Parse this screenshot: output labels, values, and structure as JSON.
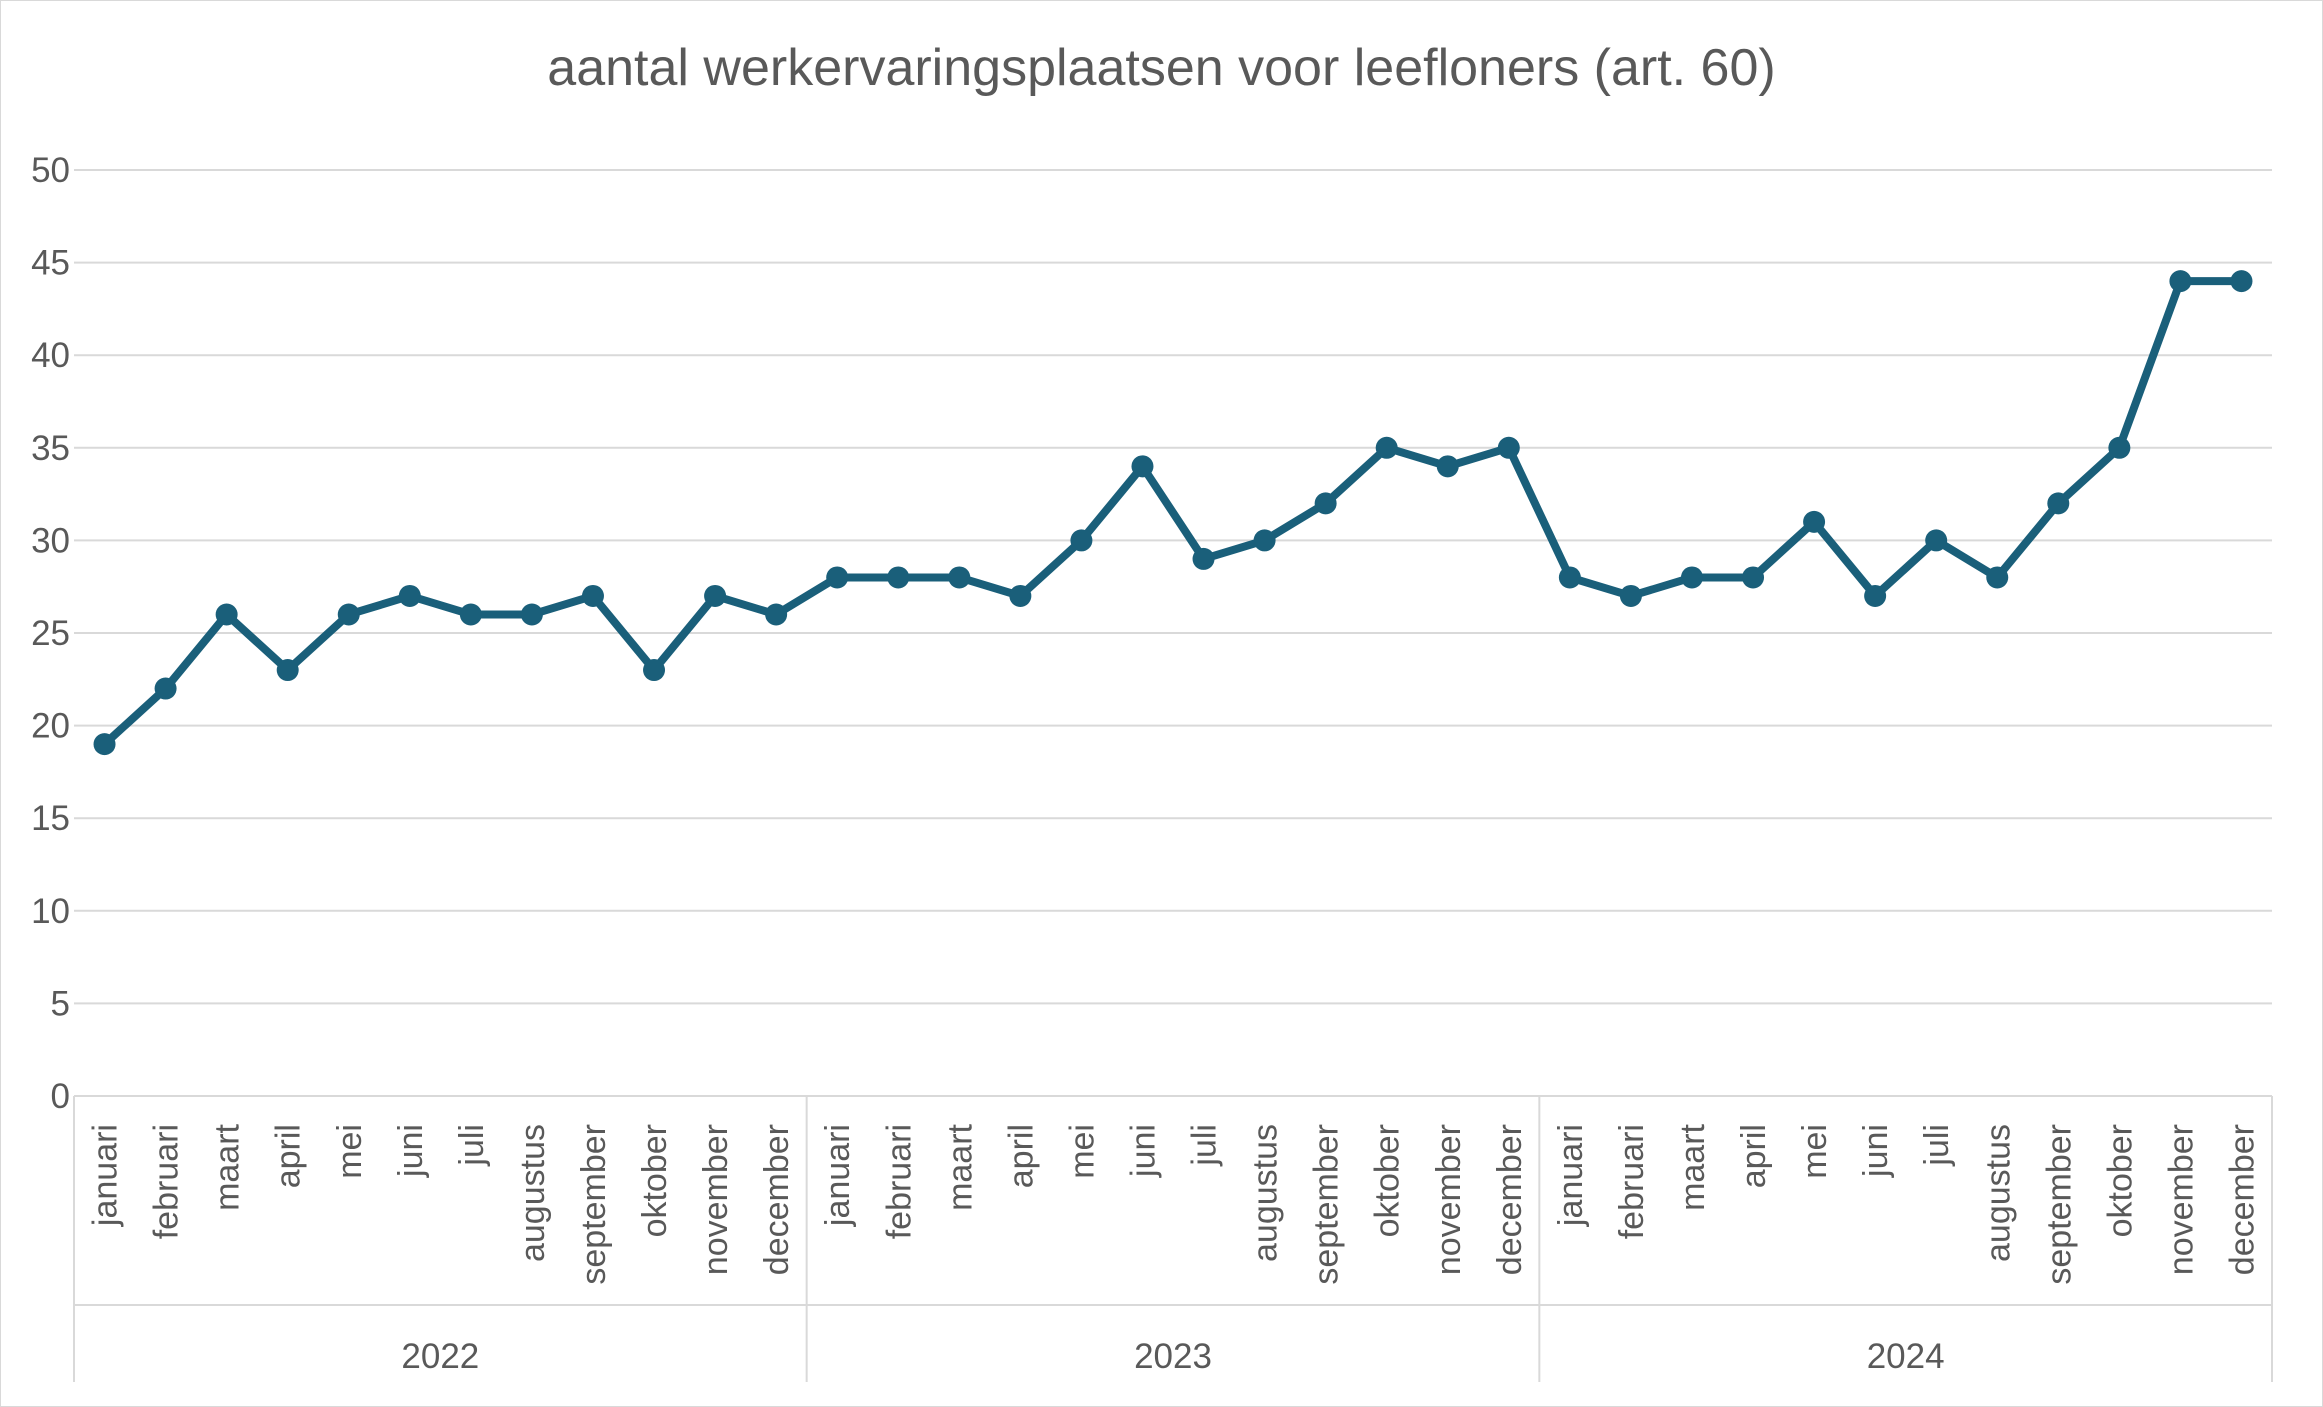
{
  "chart_data": {
    "type": "line",
    "title": "aantal werkervaringsplaatsen voor leefloners (art. 60)",
    "xlabel": "",
    "ylabel": "",
    "ylim": [
      0,
      50
    ],
    "yticks": [
      0,
      5,
      10,
      15,
      20,
      25,
      30,
      35,
      40,
      45,
      50
    ],
    "grid": true,
    "legend": "none",
    "line_color": "#1a5f7a",
    "groups": [
      {
        "label": "2022",
        "months": [
          "januari",
          "februari",
          "maart",
          "april",
          "mei",
          "juni",
          "juli",
          "augustus",
          "september",
          "oktober",
          "november",
          "december"
        ]
      },
      {
        "label": "2023",
        "months": [
          "januari",
          "februari",
          "maart",
          "april",
          "mei",
          "juni",
          "juli",
          "augustus",
          "september",
          "oktober",
          "november",
          "december"
        ]
      },
      {
        "label": "2024",
        "months": [
          "januari",
          "februari",
          "maart",
          "april",
          "mei",
          "juni",
          "juli",
          "augustus",
          "september",
          "oktober",
          "november",
          "december"
        ]
      }
    ],
    "series": [
      {
        "name": "aantal werkervaringsplaatsen",
        "values": [
          19,
          22,
          26,
          23,
          26,
          27,
          26,
          26,
          27,
          23,
          27,
          26,
          28,
          28,
          28,
          27,
          30,
          34,
          29,
          30,
          32,
          35,
          34,
          35,
          28,
          27,
          28,
          28,
          31,
          27,
          30,
          28,
          32,
          35,
          44,
          44
        ]
      }
    ]
  }
}
